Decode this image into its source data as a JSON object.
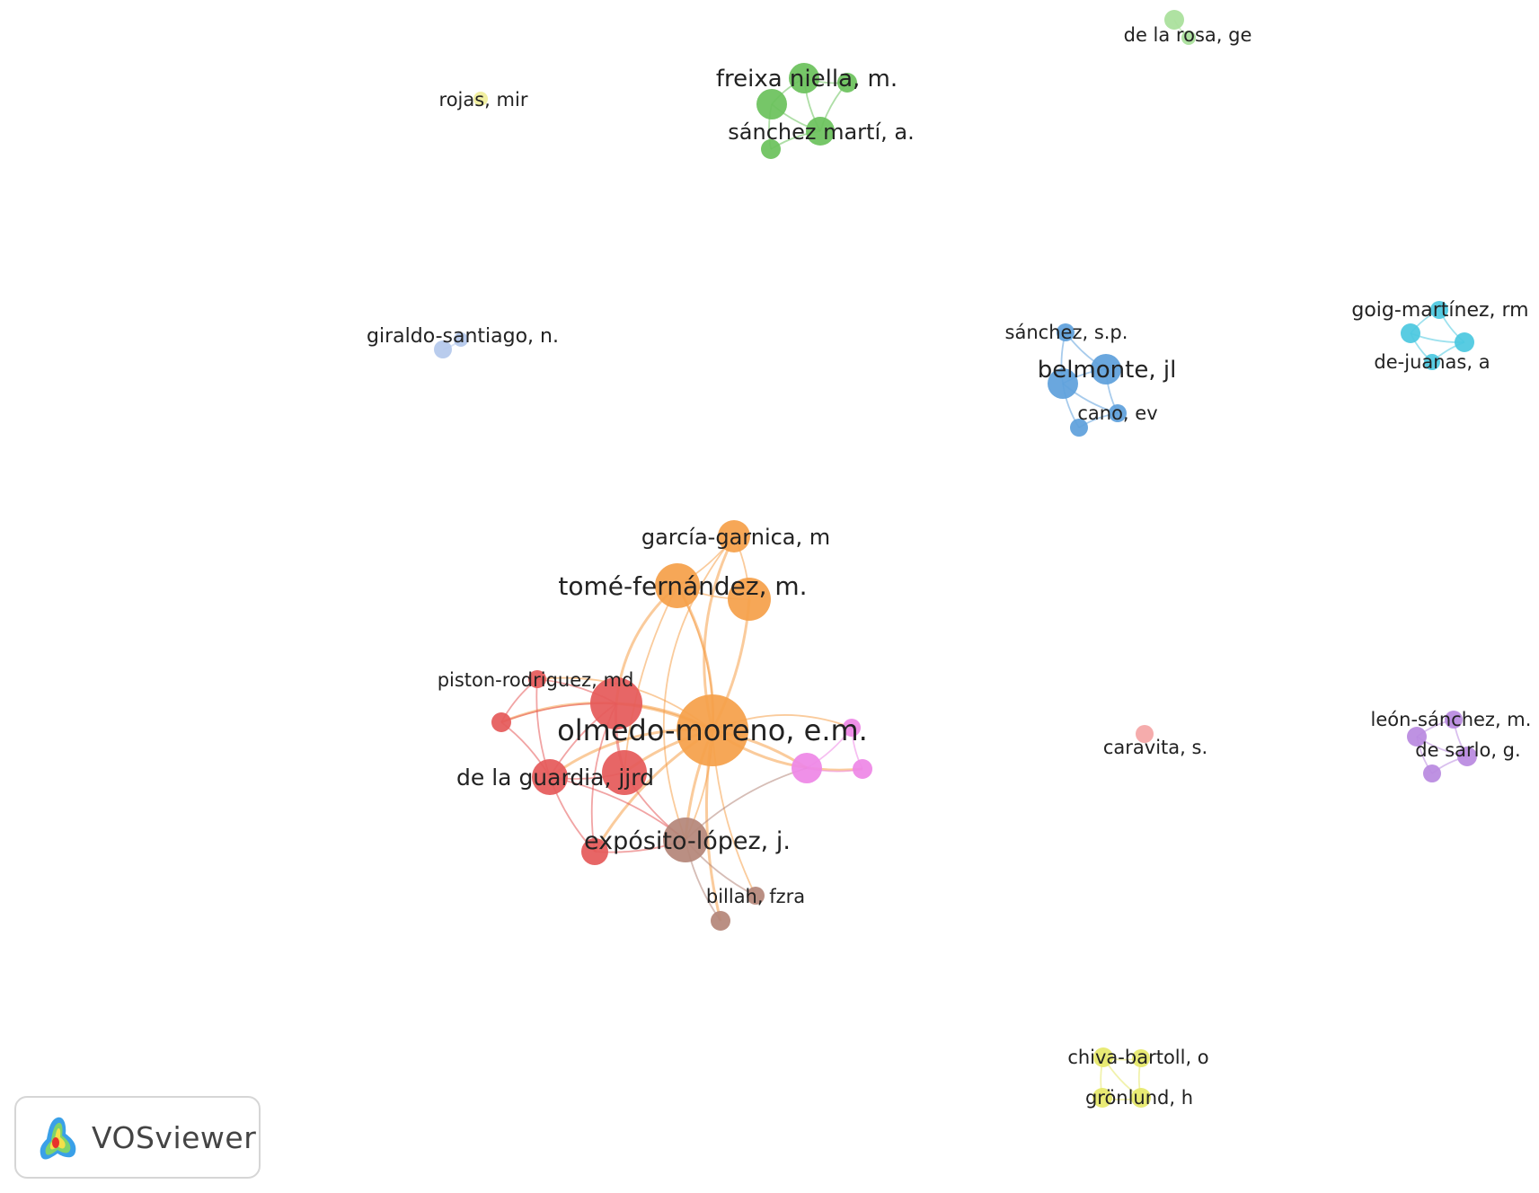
{
  "app": {
    "name": "VOSviewer"
  },
  "clusters": {
    "orange": "#f5a04a",
    "red": "#e55a5a",
    "brown": "#b5867a",
    "pink": "#ee88e6",
    "green": "#6cc25c",
    "light_green": "#a9e09b",
    "blue": "#5fa0dc",
    "cyan": "#4cc8e0",
    "purple": "#b98ae0",
    "yellow": "#e6e86a",
    "light_yellow": "#f0ee9a",
    "light_blue": "#b4c8ec",
    "salmon": "#f4a6a6"
  },
  "nodes": [
    {
      "id": "olmedo",
      "label": "olmedo-moreno, e.m.",
      "cluster": "orange"
    },
    {
      "id": "tome",
      "label": "tomé-fernández, m.",
      "cluster": "orange"
    },
    {
      "id": "tome2",
      "label": "",
      "cluster": "orange"
    },
    {
      "id": "garcia",
      "label": "garcía-garnica, m",
      "cluster": "orange"
    },
    {
      "id": "red_big",
      "label": "",
      "cluster": "red"
    },
    {
      "id": "guardia",
      "label": "de la guardia, jjrd",
      "cluster": "red"
    },
    {
      "id": "guardia2",
      "label": "",
      "cluster": "red"
    },
    {
      "id": "piston",
      "label": "piston-rodriguez, md",
      "cluster": "red"
    },
    {
      "id": "red_small",
      "label": "",
      "cluster": "red"
    },
    {
      "id": "red_low",
      "label": "",
      "cluster": "red"
    },
    {
      "id": "exposito",
      "label": "expósito-lópez, j.",
      "cluster": "brown"
    },
    {
      "id": "billah",
      "label": "billah, fzra",
      "cluster": "brown"
    },
    {
      "id": "brown_low",
      "label": "",
      "cluster": "brown"
    },
    {
      "id": "pink1",
      "label": "",
      "cluster": "pink"
    },
    {
      "id": "pink2",
      "label": "",
      "cluster": "pink"
    },
    {
      "id": "pink3",
      "label": "",
      "cluster": "pink"
    },
    {
      "id": "freixa",
      "label": "freixa niella, m.",
      "cluster": "green"
    },
    {
      "id": "green_l",
      "label": "",
      "cluster": "green"
    },
    {
      "id": "green_r",
      "label": "",
      "cluster": "green"
    },
    {
      "id": "sanchezm",
      "label": "sánchez martí, a.",
      "cluster": "green"
    },
    {
      "id": "green_b",
      "label": "",
      "cluster": "green"
    },
    {
      "id": "delarosa",
      "label": "de la rosa, ge",
      "cluster": "light_green"
    },
    {
      "id": "delarosa2",
      "label": "",
      "cluster": "light_green"
    },
    {
      "id": "rojas",
      "label": "rojas, mir",
      "cluster": "light_yellow"
    },
    {
      "id": "giraldo",
      "label": "giraldo-santiago, n.",
      "cluster": "light_blue"
    },
    {
      "id": "giraldo2",
      "label": "",
      "cluster": "light_blue"
    },
    {
      "id": "sanchezsp",
      "label": "sánchez, s.p.",
      "cluster": "blue"
    },
    {
      "id": "belmonte",
      "label": "belmonte, jl",
      "cluster": "blue"
    },
    {
      "id": "blue_big",
      "label": "",
      "cluster": "blue"
    },
    {
      "id": "cano",
      "label": "cano, ev",
      "cluster": "blue"
    },
    {
      "id": "blue_low",
      "label": "",
      "cluster": "blue"
    },
    {
      "id": "goig",
      "label": "goig-martínez, rm",
      "cluster": "cyan"
    },
    {
      "id": "cyan_l",
      "label": "",
      "cluster": "cyan"
    },
    {
      "id": "cyan_r",
      "label": "",
      "cluster": "cyan"
    },
    {
      "id": "dejuanas",
      "label": "de-juanas, a",
      "cluster": "cyan"
    },
    {
      "id": "caravita",
      "label": "caravita, s.",
      "cluster": "salmon"
    },
    {
      "id": "leon",
      "label": "león-sánchez, m.",
      "cluster": "purple"
    },
    {
      "id": "purple_l",
      "label": "",
      "cluster": "purple"
    },
    {
      "id": "desarlo",
      "label": "de sarlo, g.",
      "cluster": "purple"
    },
    {
      "id": "purple_b",
      "label": "",
      "cluster": "purple"
    },
    {
      "id": "chiva",
      "label": "chiva-bartoll, o",
      "cluster": "yellow"
    },
    {
      "id": "chiva2",
      "label": "",
      "cluster": "yellow"
    },
    {
      "id": "gronlund",
      "label": "grönlund, h",
      "cluster": "yellow"
    },
    {
      "id": "gronlund2",
      "label": "",
      "cluster": "yellow"
    }
  ],
  "links": [
    [
      "olmedo",
      "tome"
    ],
    [
      "olmedo",
      "tome2"
    ],
    [
      "olmedo",
      "garcia"
    ],
    [
      "olmedo",
      "red_big"
    ],
    [
      "olmedo",
      "guardia"
    ],
    [
      "olmedo",
      "guardia2"
    ],
    [
      "olmedo",
      "piston"
    ],
    [
      "olmedo",
      "red_small"
    ],
    [
      "olmedo",
      "red_low"
    ],
    [
      "olmedo",
      "exposito"
    ],
    [
      "olmedo",
      "pink1"
    ],
    [
      "olmedo",
      "pink2"
    ],
    [
      "olmedo",
      "pink3"
    ],
    [
      "olmedo",
      "billah"
    ],
    [
      "olmedo",
      "brown_low"
    ],
    [
      "tome",
      "tome2"
    ],
    [
      "tome",
      "garcia"
    ],
    [
      "tome2",
      "garcia"
    ],
    [
      "tome",
      "red_big"
    ],
    [
      "tome",
      "exposito"
    ],
    [
      "tome",
      "guardia2"
    ],
    [
      "garcia",
      "exposito"
    ],
    [
      "red_big",
      "guardia"
    ],
    [
      "red_big",
      "guardia2"
    ],
    [
      "red_big",
      "piston"
    ],
    [
      "red_big",
      "red_small"
    ],
    [
      "red_big",
      "red_low"
    ],
    [
      "guardia",
      "guardia2"
    ],
    [
      "guardia",
      "red_low"
    ],
    [
      "guardia",
      "red_small"
    ],
    [
      "guardia2",
      "exposito"
    ],
    [
      "guardia",
      "exposito"
    ],
    [
      "red_low",
      "exposito"
    ],
    [
      "piston",
      "red_small"
    ],
    [
      "piston",
      "guardia"
    ],
    [
      "exposito",
      "billah"
    ],
    [
      "exposito",
      "brown_low"
    ],
    [
      "exposito",
      "pink1"
    ],
    [
      "pink1",
      "pink2"
    ],
    [
      "pink1",
      "pink3"
    ],
    [
      "pink2",
      "pink3"
    ],
    [
      "freixa",
      "green_l"
    ],
    [
      "freixa",
      "green_r"
    ],
    [
      "freixa",
      "sanchezm"
    ],
    [
      "green_l",
      "sanchezm"
    ],
    [
      "green_l",
      "green_b"
    ],
    [
      "green_r",
      "sanchezm"
    ],
    [
      "sanchezm",
      "green_b"
    ],
    [
      "delarosa",
      "delarosa2"
    ],
    [
      "giraldo",
      "giraldo2"
    ],
    [
      "sanchezsp",
      "belmonte"
    ],
    [
      "sanchezsp",
      "blue_big"
    ],
    [
      "belmonte",
      "blue_big"
    ],
    [
      "belmonte",
      "cano"
    ],
    [
      "blue_big",
      "cano"
    ],
    [
      "cano",
      "blue_low"
    ],
    [
      "blue_big",
      "blue_low"
    ],
    [
      "goig",
      "cyan_l"
    ],
    [
      "goig",
      "cyan_r"
    ],
    [
      "cyan_l",
      "dejuanas"
    ],
    [
      "cyan_r",
      "dejuanas"
    ],
    [
      "cyan_l",
      "cyan_r"
    ],
    [
      "leon",
      "purple_l"
    ],
    [
      "leon",
      "desarlo"
    ],
    [
      "purple_l",
      "purple_b"
    ],
    [
      "desarlo",
      "purple_b"
    ],
    [
      "purple_l",
      "desarlo"
    ],
    [
      "chiva",
      "chiva2"
    ],
    [
      "chiva",
      "gronlund"
    ],
    [
      "chiva2",
      "gronlund2"
    ],
    [
      "gronlund",
      "gronlund2"
    ],
    [
      "chiva",
      "gronlund2"
    ]
  ]
}
